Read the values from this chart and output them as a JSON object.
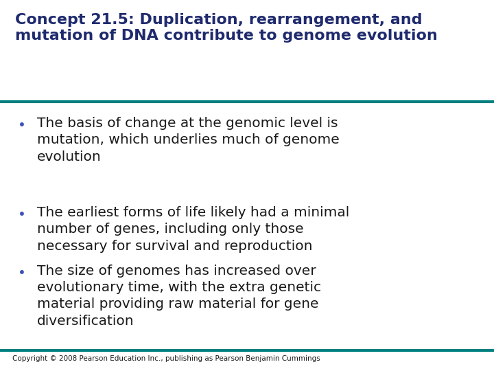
{
  "title_line1": "Concept 21.5: Duplication, rearrangement, and",
  "title_line2": "mutation of DNA contribute to genome evolution",
  "title_color": "#1f2a6e",
  "teal_line_color": "#008080",
  "bullet_color": "#3f51b5",
  "body_color": "#1a1a1a",
  "background_color": "#ffffff",
  "copyright": "Copyright © 2008 Pearson Education Inc., publishing as Pearson Benjamin Cummings",
  "bullets": [
    "The basis of change at the genomic level is\nmutation, which underlies much of genome\nevolution",
    "The earliest forms of life likely had a minimal\nnumber of genes, including only those\nnecessary for survival and reproduction",
    "The size of genomes has increased over\nevolutionary time, with the extra genetic\nmaterial providing raw material for gene\ndiversification"
  ],
  "title_fontsize": 16,
  "bullet_fontsize": 14.5,
  "copyright_fontsize": 7.5
}
